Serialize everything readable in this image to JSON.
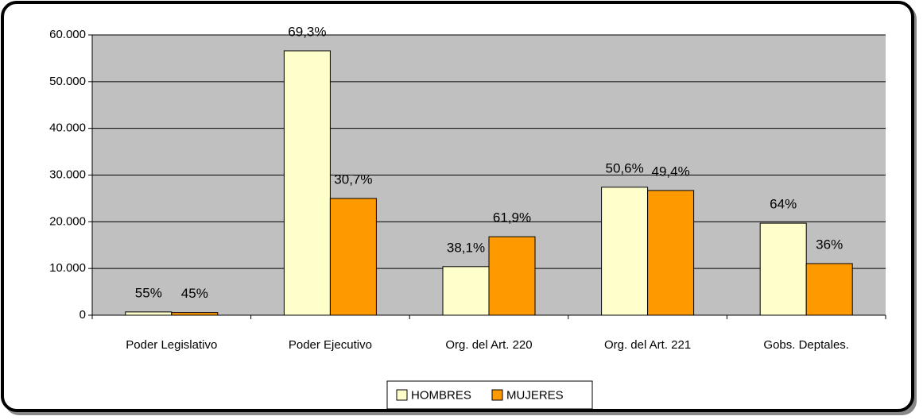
{
  "chart_data": {
    "type": "bar",
    "categories": [
      "Poder Legislativo",
      "Poder Ejecutivo",
      "Org. del Art. 220",
      "Org. del Art. 221",
      "Gobs. Deptales."
    ],
    "series": [
      {
        "name": "HOMBRES",
        "color": "#ffffcc",
        "values": [
          700,
          56600,
          10400,
          27400,
          19700
        ],
        "shares": [
          55,
          69.3,
          38.1,
          50.6,
          64
        ],
        "share_labels": [
          "55%",
          "69,3%",
          "38,1%",
          "50,6%",
          "64%"
        ]
      },
      {
        "name": "MUJERES",
        "color": "#ff9900",
        "values": [
          570,
          25000,
          16800,
          26700,
          11050
        ],
        "shares": [
          45,
          30.7,
          61.9,
          49.4,
          36
        ],
        "share_labels": [
          "45%",
          "30,7%",
          "61,9%",
          "49,4%",
          "36%"
        ]
      }
    ],
    "ylim": [
      0,
      60000
    ],
    "yticks": [
      0,
      {
        "value": 10000,
        "label": "10.000"
      },
      {
        "value": 20000,
        "label": "20.000"
      },
      {
        "value": 30000,
        "label": "30.000"
      },
      {
        "value": 40000,
        "label": "40.000"
      },
      {
        "value": 50000,
        "label": "50.000"
      },
      {
        "value": 60000,
        "label": "60.000"
      }
    ],
    "grid": true,
    "legend": "bottom",
    "plot_background": "#c0c0c0"
  }
}
